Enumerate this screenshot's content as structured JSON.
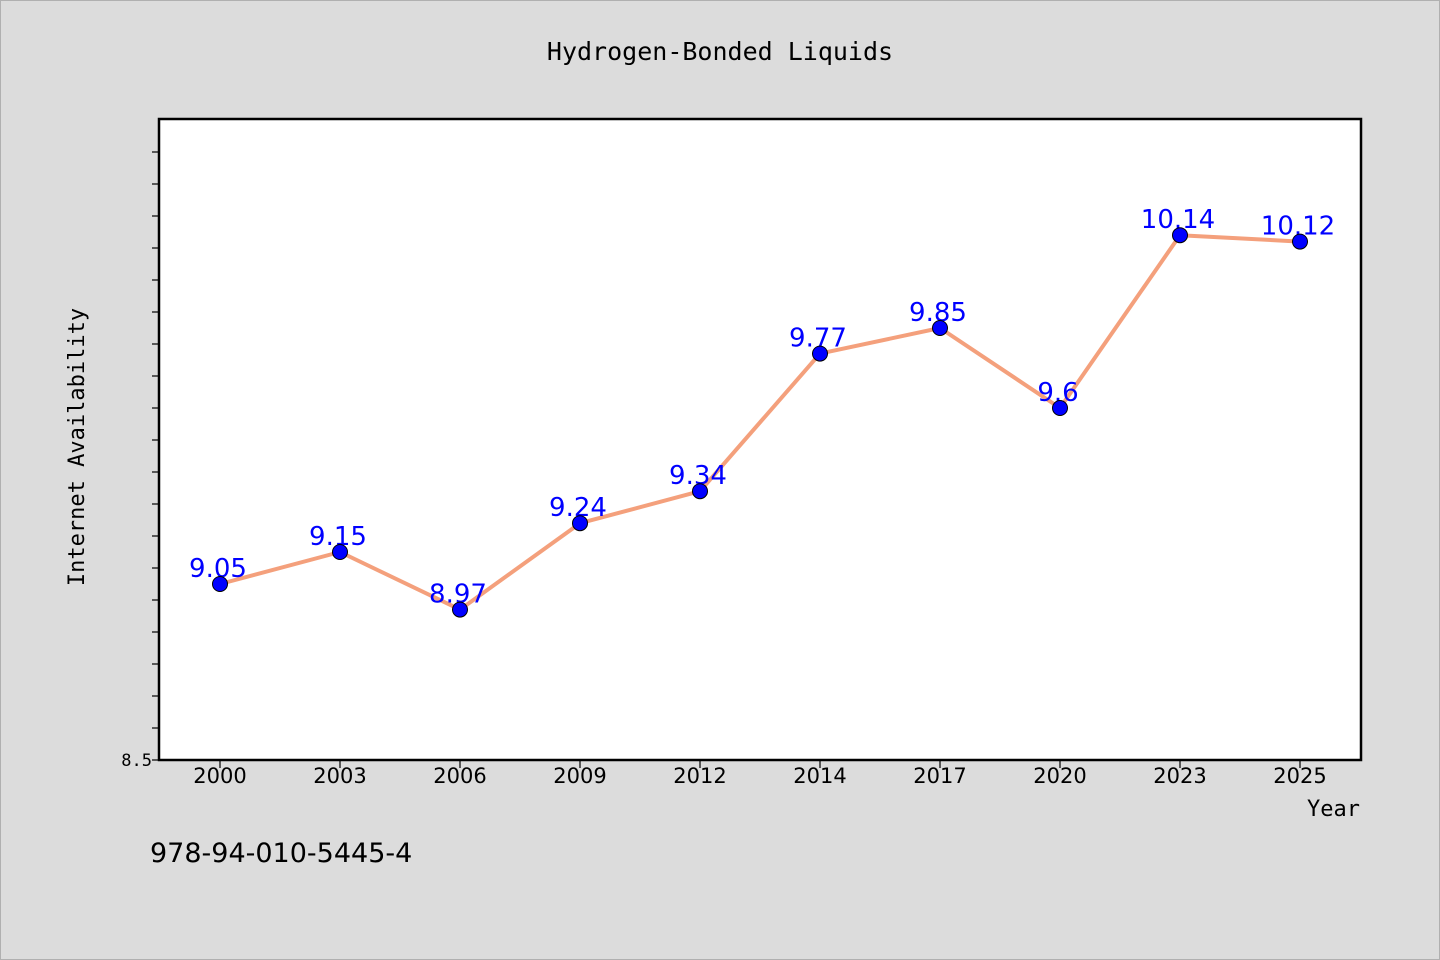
{
  "chart_data": {
    "type": "line",
    "title": "Hydrogen-Bonded Liquids",
    "xlabel": "Year",
    "ylabel": "Internet Availability",
    "categories": [
      "2000",
      "2003",
      "2006",
      "2009",
      "2012",
      "2014",
      "2017",
      "2020",
      "2023",
      "2025"
    ],
    "series": [
      {
        "values": [
          9.05,
          9.15,
          8.97,
          9.24,
          9.34,
          9.77,
          9.85,
          9.6,
          10.14,
          10.12
        ],
        "labels": [
          "9.05",
          "9.15",
          "8.97",
          "9.24",
          "9.34",
          "9.77",
          "9.85",
          "9.6",
          "10.14",
          "10.12"
        ],
        "line_color": "#f4a07c",
        "marker_color": "#0000ff",
        "label_color": "#0000ff"
      }
    ],
    "ylim": [
      8.5,
      10.5
    ],
    "y_tick_labels": [
      "8.5"
    ],
    "grid": false,
    "legend": false
  },
  "footer": {
    "code": "978-94-010-5445-4"
  },
  "colors": {
    "background": "#dcdcdc",
    "plot_background": "#ffffff",
    "axes": "#000000"
  }
}
